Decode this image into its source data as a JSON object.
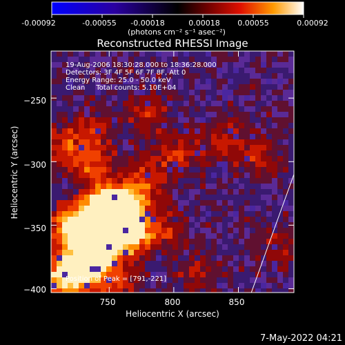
{
  "chart_data": {
    "type": "heatmap",
    "title": "Reconstructed RHESSI Image",
    "xlabel": "Heliocentric X (arcsec)",
    "ylabel": "Heliocentric Y (arcsec)",
    "xlim": [
      705,
      893
    ],
    "ylim": [
      -403,
      -213
    ],
    "x_ticks": [
      750,
      800,
      850
    ],
    "y_ticks": [
      -250,
      -300,
      -350,
      -400
    ],
    "x_tick_labels": [
      "750",
      "800",
      "850"
    ],
    "y_tick_labels": [
      "−250",
      "−300",
      "−350",
      "−400"
    ],
    "colorbar": {
      "min": -0.00092,
      "max": 0.00092,
      "tick_labels": [
        "-0.00092",
        "-0.00055",
        "-0.00018",
        "0.00018",
        "0.00055",
        "0.00092"
      ],
      "units_label": "(photons cm⁻² s⁻¹ asec⁻²)"
    },
    "info_lines": [
      "19-Aug-2006 18:30:28.000 to 18:36:28.000",
      "Detectors: 3F 4F 5F 6F 7F 8F, Att 0",
      "Energy Range: 25.0 - 50.0 keV",
      "Clean     Total counts: 5.10E+04"
    ],
    "peak_label": "Position of Peak = [791,-221]",
    "peak_position": [
      791,
      -221
    ],
    "limb_line": [
      [
        860,
        -403
      ],
      [
        893,
        -310
      ]
    ],
    "colors": {
      "negative": "#0000ff",
      "zero": "#000000",
      "low_positive": "#800000",
      "mid_positive": "#ff4000",
      "high_positive": "#ffc000",
      "max_positive": "#ffffff",
      "background_noise": "#5a2a96"
    }
  },
  "footer": {
    "date": "7-May-2022 04:21"
  }
}
